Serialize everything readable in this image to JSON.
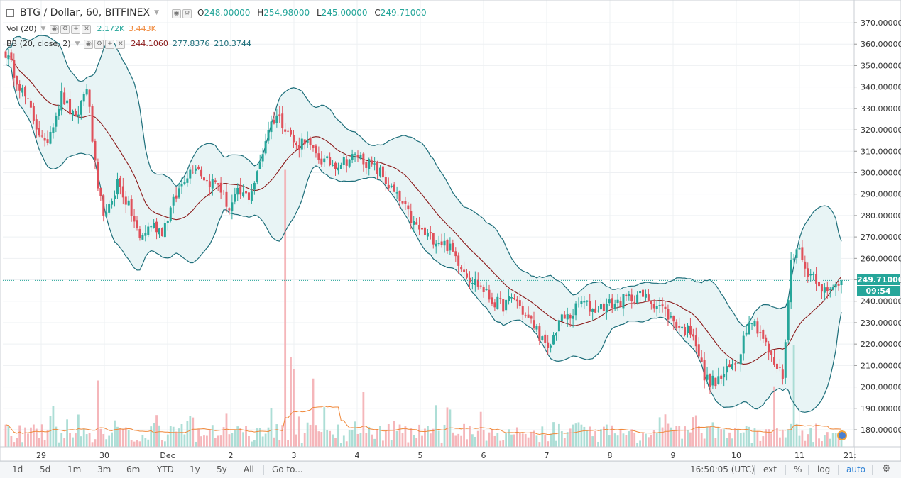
{
  "header": {
    "symbol_title": "BTG / Dollar, 60, BITFINEX",
    "ohlc": [
      {
        "key": "O",
        "value": "248.00000"
      },
      {
        "key": "H",
        "value": "254.98000"
      },
      {
        "key": "L",
        "value": "245.00000"
      },
      {
        "key": "C",
        "value": "249.71000"
      }
    ]
  },
  "indicators": {
    "vol": {
      "label": "Vol (20)",
      "value1": "2.172K",
      "value2": "3.443K"
    },
    "bb": {
      "label": "BB (20, close, 2)",
      "basis": "244.1060",
      "upper": "277.8376",
      "lower": "210.3744"
    }
  },
  "price_axis": {
    "ticks": [
      "370.00000",
      "360.00000",
      "350.00000",
      "340.00000",
      "330.00000",
      "320.00000",
      "310.00000",
      "300.00000",
      "290.00000",
      "280.00000",
      "270.00000",
      "260.00000",
      "250.00000",
      "240.00000",
      "230.00000",
      "220.00000",
      "210.00000",
      "200.00000",
      "190.00000",
      "180.00000"
    ],
    "last_price": "249.71000",
    "countdown": "09:54"
  },
  "time_axis": {
    "labels": [
      "29",
      "30",
      "Dec",
      "2",
      "3",
      "4",
      "5",
      "6",
      "7",
      "8",
      "9",
      "10",
      "11",
      "21:"
    ]
  },
  "bottom_bar": {
    "ranges": [
      "1d",
      "5d",
      "1m",
      "3m",
      "6m",
      "YTD",
      "1y",
      "5y",
      "All"
    ],
    "goto": "Go to...",
    "clock": "16:50:05 (UTC)",
    "ext": "ext",
    "percent": "%",
    "log": "log",
    "auto": "auto"
  },
  "colors": {
    "up": "#26a69a",
    "down": "#e0505a",
    "bb_band": "#1d6e7a",
    "bb_fill": "#e8f4f5",
    "basis": "#8b1a1a",
    "vol_ma": "#f0883a",
    "price_line": "#26a69a"
  },
  "chart_data": {
    "type": "candlestick",
    "title": "BTG / Dollar, 60, BITFINEX",
    "ylim": [
      172,
      374
    ],
    "last_close": 249.71,
    "x_labels": [
      "29",
      "30",
      "Dec",
      "2",
      "3",
      "4",
      "5",
      "6",
      "7",
      "8",
      "9",
      "10",
      "11"
    ],
    "anchors": [
      [
        0,
        356
      ],
      [
        8,
        332
      ],
      [
        14,
        312
      ],
      [
        20,
        336
      ],
      [
        25,
        324
      ],
      [
        29,
        341
      ],
      [
        33,
        290
      ],
      [
        36,
        279
      ],
      [
        40,
        296
      ],
      [
        45,
        281
      ],
      [
        48,
        269
      ],
      [
        52,
        276
      ],
      [
        56,
        273
      ],
      [
        60,
        286
      ],
      [
        64,
        298
      ],
      [
        68,
        304
      ],
      [
        72,
        296
      ],
      [
        76,
        295
      ],
      [
        80,
        283
      ],
      [
        83,
        290
      ],
      [
        87,
        289
      ],
      [
        90,
        299
      ],
      [
        94,
        321
      ],
      [
        97,
        327
      ],
      [
        100,
        322
      ],
      [
        104,
        312
      ],
      [
        107,
        316
      ],
      [
        110,
        309
      ],
      [
        114,
        305
      ],
      [
        118,
        304
      ],
      [
        122,
        306
      ],
      [
        126,
        308
      ],
      [
        130,
        304
      ],
      [
        134,
        300
      ],
      [
        138,
        292
      ],
      [
        142,
        285
      ],
      [
        146,
        276
      ],
      [
        150,
        271
      ],
      [
        154,
        269
      ],
      [
        158,
        266
      ],
      [
        162,
        259
      ],
      [
        166,
        251
      ],
      [
        170,
        247
      ],
      [
        174,
        240
      ],
      [
        178,
        238
      ],
      [
        182,
        242
      ],
      [
        186,
        233
      ],
      [
        190,
        227
      ],
      [
        194,
        216
      ],
      [
        198,
        231
      ],
      [
        202,
        233
      ],
      [
        206,
        240
      ],
      [
        210,
        236
      ],
      [
        214,
        238
      ],
      [
        218,
        239
      ],
      [
        222,
        241
      ],
      [
        226,
        243
      ],
      [
        230,
        241
      ],
      [
        234,
        238
      ],
      [
        238,
        232
      ],
      [
        242,
        227
      ],
      [
        246,
        226
      ],
      [
        250,
        204
      ],
      [
        254,
        202
      ],
      [
        258,
        207
      ],
      [
        262,
        213
      ],
      [
        266,
        233
      ],
      [
        270,
        226
      ],
      [
        274,
        213
      ],
      [
        278,
        205
      ],
      [
        281,
        258
      ],
      [
        283,
        267
      ],
      [
        286,
        255
      ],
      [
        290,
        251
      ],
      [
        294,
        243
      ],
      [
        298,
        249
      ]
    ],
    "volume": {
      "name": "Vol (20)",
      "value": "2.172K",
      "ma": "3.443K",
      "spikes": [
        [
          17,
          2.1
        ],
        [
          33,
          3.4
        ],
        [
          100,
          14.2
        ],
        [
          102,
          4.6
        ],
        [
          103,
          4.0
        ],
        [
          110,
          3.5
        ],
        [
          128,
          2.8
        ],
        [
          282,
          5.2
        ],
        [
          275,
          3.1
        ]
      ]
    },
    "bollinger": {
      "name": "BB (20, close, 2)",
      "basis": 244.106,
      "upper": 277.8376,
      "lower": 210.3744
    }
  }
}
